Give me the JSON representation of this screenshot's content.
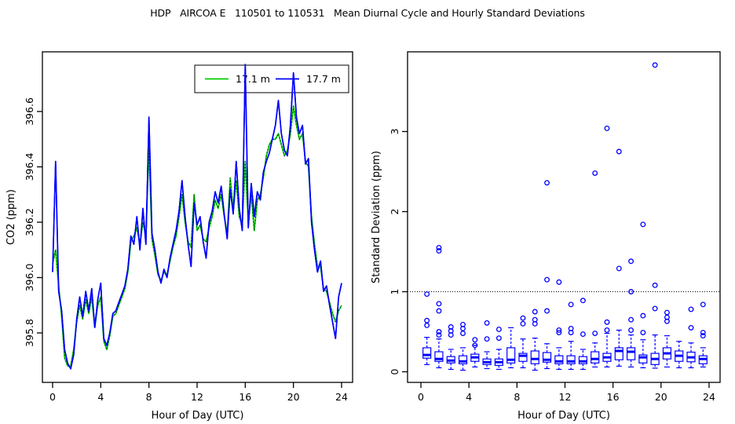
{
  "title": "HDP   AIRCOA E   110501 to 110531   Mean Diurnal Cycle and Hourly Standard Deviations",
  "colors": {
    "background": "#FFFFFF",
    "axis": "#000000",
    "series_17_1m": "#00CD00",
    "series_17_7m": "#0000FF",
    "boxplot": "#0000FF",
    "reference_line": "#000000"
  },
  "chart_data": [
    {
      "type": "line",
      "panel": "left",
      "xlabel": "Hour of Day (UTC)",
      "ylabel": "CO2 (ppm)",
      "xlim": [
        0,
        24
      ],
      "ylim": [
        395.62,
        396.82
      ],
      "xticks": [
        0,
        4,
        8,
        12,
        16,
        20,
        24
      ],
      "yticks": [
        395.8,
        396.0,
        396.2,
        396.4,
        396.6
      ],
      "ytick_decimals": 1,
      "grid": false,
      "legend": {
        "position": "top-center",
        "entries": [
          {
            "label": "17.1 m",
            "color": "#00CD00"
          },
          {
            "label": "17.7 m",
            "color": "#0000FF"
          }
        ]
      },
      "x_start": 0,
      "x_step": 0.25,
      "series": [
        {
          "name": "17.1 m",
          "color": "#00CD00",
          "style": "solid-with-black-dotted-overlay",
          "values": [
            396.05,
            396.1,
            395.97,
            395.86,
            395.71,
            395.68,
            395.68,
            395.74,
            395.84,
            395.9,
            395.85,
            395.92,
            395.87,
            395.93,
            395.82,
            395.9,
            395.93,
            395.77,
            395.74,
            395.79,
            395.86,
            395.87,
            395.9,
            395.93,
            395.96,
            396.02,
            396.13,
            396.15,
            396.18,
            396.12,
            396.2,
            396.15,
            396.47,
            396.14,
            396.08,
            396.01,
            395.99,
            396.02,
            396.01,
            396.06,
            396.11,
            396.15,
            396.22,
            396.3,
            396.2,
            396.13,
            396.11,
            396.3,
            396.17,
            396.19,
            396.14,
            396.13,
            396.18,
            396.22,
            396.28,
            396.25,
            396.3,
            396.22,
            396.16,
            396.36,
            396.24,
            396.35,
            396.22,
            396.19,
            396.42,
            396.2,
            396.3,
            396.17,
            396.28,
            396.3,
            396.36,
            396.44,
            396.48,
            396.5,
            396.5,
            396.52,
            396.48,
            396.44,
            396.46,
            396.52,
            396.62,
            396.55,
            396.5,
            396.52,
            396.42,
            396.4,
            396.22,
            396.12,
            396.04,
            396.04,
            395.96,
            395.95,
            395.91,
            395.87,
            395.84,
            395.88,
            395.9
          ]
        },
        {
          "name": "17.7 m",
          "color": "#0000FF",
          "style": "solid",
          "values": [
            396.02,
            396.42,
            395.95,
            395.88,
            395.74,
            395.69,
            395.67,
            395.72,
            395.85,
            395.93,
            395.86,
            395.95,
            395.88,
            395.96,
            395.82,
            395.92,
            395.98,
            395.78,
            395.755,
            395.8,
            395.87,
            395.88,
            395.91,
            395.94,
            395.97,
            396.03,
            396.15,
            396.12,
            396.22,
            396.1,
            396.25,
            396.12,
            396.58,
            396.16,
            396.1,
            396.02,
            395.98,
            396.03,
            396.0,
            396.07,
            396.12,
            396.17,
            396.24,
            396.35,
            396.22,
            396.12,
            396.04,
            396.27,
            396.19,
            396.22,
            396.13,
            396.07,
            396.2,
            396.24,
            396.31,
            396.27,
            396.33,
            396.23,
            396.14,
            396.32,
            396.23,
            396.42,
            396.25,
            396.17,
            396.77,
            396.18,
            396.34,
            396.22,
            396.31,
            396.28,
            396.38,
            396.42,
            396.45,
            396.5,
            396.55,
            396.64,
            396.52,
            396.46,
            396.44,
            396.55,
            396.74,
            396.58,
            396.52,
            396.55,
            396.41,
            396.43,
            396.2,
            396.1,
            396.02,
            396.06,
            395.95,
            395.97,
            395.9,
            395.84,
            395.78,
            395.93,
            395.98
          ]
        }
      ]
    },
    {
      "type": "boxplot",
      "panel": "right",
      "xlabel": "Hour of Day (UTC)",
      "ylabel": "Standard Deviation (ppm)",
      "xlim": [
        0,
        24
      ],
      "ylim": [
        -0.13,
        4.0
      ],
      "xticks": [
        0,
        4,
        8,
        12,
        16,
        20,
        24
      ],
      "yticks": [
        0,
        1,
        2,
        3
      ],
      "ytick_decimals": 0,
      "grid": false,
      "reference_line_y": 1.0,
      "color": "#0000FF",
      "boxes": [
        {
          "hour": 0,
          "whislo": 0.09,
          "q1": 0.17,
          "med": 0.21,
          "q3": 0.3,
          "whishi": 0.43,
          "outliers": [
            0.58,
            0.64,
            0.97
          ]
        },
        {
          "hour": 1,
          "whislo": 0.05,
          "q1": 0.13,
          "med": 0.16,
          "q3": 0.25,
          "whishi": 0.41,
          "outliers": [
            0.46,
            0.5,
            0.76,
            0.85,
            1.51,
            1.55
          ]
        },
        {
          "hour": 2,
          "whislo": 0.03,
          "q1": 0.11,
          "med": 0.14,
          "q3": 0.19,
          "whishi": 0.28,
          "outliers": [
            0.46,
            0.51,
            0.56
          ]
        },
        {
          "hour": 3,
          "whislo": 0.02,
          "q1": 0.1,
          "med": 0.13,
          "q3": 0.2,
          "whishi": 0.3,
          "outliers": [
            0.48,
            0.54,
            0.59
          ]
        },
        {
          "hour": 4,
          "whislo": 0.06,
          "q1": 0.13,
          "med": 0.18,
          "q3": 0.22,
          "whishi": 0.33,
          "outliers": [
            0.33,
            0.4
          ]
        },
        {
          "hour": 5,
          "whislo": 0.04,
          "q1": 0.09,
          "med": 0.12,
          "q3": 0.16,
          "whishi": 0.25,
          "outliers": [
            0.41,
            0.61
          ]
        },
        {
          "hour": 6,
          "whislo": 0.03,
          "q1": 0.08,
          "med": 0.12,
          "q3": 0.16,
          "whishi": 0.28,
          "outliers": [
            0.42,
            0.53
          ]
        },
        {
          "hour": 7,
          "whislo": 0.05,
          "q1": 0.11,
          "med": 0.15,
          "q3": 0.3,
          "whishi": 0.55,
          "outliers": []
        },
        {
          "hour": 8,
          "whislo": 0.05,
          "q1": 0.13,
          "med": 0.2,
          "q3": 0.23,
          "whishi": 0.41,
          "outliers": [
            0.6,
            0.67
          ]
        },
        {
          "hour": 9,
          "whislo": 0.02,
          "q1": 0.1,
          "med": 0.16,
          "q3": 0.26,
          "whishi": 0.42,
          "outliers": [
            0.6,
            0.65,
            0.75
          ]
        },
        {
          "hour": 10,
          "whislo": 0.04,
          "q1": 0.12,
          "med": 0.15,
          "q3": 0.24,
          "whishi": 0.35,
          "outliers": [
            0.76,
            1.15,
            2.36
          ]
        },
        {
          "hour": 11,
          "whislo": 0.03,
          "q1": 0.1,
          "med": 0.13,
          "q3": 0.2,
          "whishi": 0.3,
          "outliers": [
            0.49,
            0.52,
            1.12
          ]
        },
        {
          "hour": 12,
          "whislo": 0.03,
          "q1": 0.1,
          "med": 0.13,
          "q3": 0.2,
          "whishi": 0.38,
          "outliers": [
            0.49,
            0.54,
            0.84
          ]
        },
        {
          "hour": 13,
          "whislo": 0.03,
          "q1": 0.1,
          "med": 0.13,
          "q3": 0.19,
          "whishi": 0.28,
          "outliers": [
            0.47,
            0.89
          ]
        },
        {
          "hour": 14,
          "whislo": 0.06,
          "q1": 0.11,
          "med": 0.16,
          "q3": 0.25,
          "whishi": 0.36,
          "outliers": [
            0.48,
            2.48
          ]
        },
        {
          "hour": 15,
          "whislo": 0.06,
          "q1": 0.13,
          "med": 0.18,
          "q3": 0.23,
          "whishi": 0.48,
          "outliers": [
            0.52,
            0.62,
            3.04
          ]
        },
        {
          "hour": 16,
          "whislo": 0.07,
          "q1": 0.15,
          "med": 0.26,
          "q3": 0.3,
          "whishi": 0.52,
          "outliers": [
            1.29,
            2.75
          ]
        },
        {
          "hour": 17,
          "whislo": 0.06,
          "q1": 0.15,
          "med": 0.25,
          "q3": 0.3,
          "whishi": 0.46,
          "outliers": [
            0.52,
            0.65,
            1.0,
            1.38
          ]
        },
        {
          "hour": 18,
          "whislo": 0.05,
          "q1": 0.11,
          "med": 0.18,
          "q3": 0.21,
          "whishi": 0.4,
          "outliers": [
            0.49,
            0.7,
            1.84
          ]
        },
        {
          "hour": 19,
          "whislo": 0.045,
          "q1": 0.09,
          "med": 0.16,
          "q3": 0.23,
          "whishi": 0.46,
          "outliers": [
            0.79,
            1.08,
            3.83
          ]
        },
        {
          "hour": 20,
          "whislo": 0.06,
          "q1": 0.16,
          "med": 0.23,
          "q3": 0.3,
          "whishi": 0.45,
          "outliers": [
            0.63,
            0.68,
            0.74
          ]
        },
        {
          "hour": 21,
          "whislo": 0.05,
          "q1": 0.13,
          "med": 0.2,
          "q3": 0.26,
          "whishi": 0.38,
          "outliers": []
        },
        {
          "hour": 22,
          "whislo": 0.05,
          "q1": 0.125,
          "med": 0.18,
          "q3": 0.245,
          "whishi": 0.36,
          "outliers": [
            0.55,
            0.78
          ]
        },
        {
          "hour": 23,
          "whislo": 0.06,
          "q1": 0.1,
          "med": 0.16,
          "q3": 0.2,
          "whishi": 0.3,
          "outliers": [
            0.45,
            0.49,
            0.84
          ]
        }
      ]
    }
  ]
}
